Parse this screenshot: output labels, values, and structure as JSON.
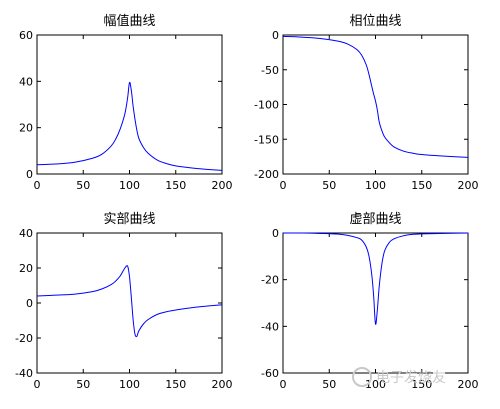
{
  "chart_data": [
    {
      "type": "line",
      "title": "幅值曲线",
      "xlabel": "",
      "ylabel": "",
      "xlim": [
        0,
        200
      ],
      "ylim": [
        0,
        60
      ],
      "xticks": [
        0,
        50,
        100,
        150,
        200
      ],
      "yticks": [
        0,
        20,
        40,
        60
      ],
      "grid": false,
      "line_color": "#0000ff",
      "series": [
        {
          "x": [
            0,
            20,
            40,
            60,
            70,
            80,
            85,
            90,
            95,
            98,
            100,
            102,
            104,
            107,
            110,
            115,
            120,
            130,
            140,
            150,
            170,
            200
          ],
          "values": [
            4,
            4.3,
            5,
            6.8,
            8.5,
            12,
            15,
            19.5,
            26,
            33,
            39.5,
            36,
            29,
            21,
            15.5,
            11.5,
            9,
            6,
            4.5,
            3.5,
            2.5,
            1.5
          ]
        }
      ]
    },
    {
      "type": "line",
      "title": "相位曲线",
      "xlabel": "",
      "ylabel": "",
      "xlim": [
        0,
        200
      ],
      "ylim": [
        -200,
        0
      ],
      "xticks": [
        0,
        50,
        100,
        150,
        200
      ],
      "yticks": [
        0,
        -50,
        -100,
        -150,
        -200
      ],
      "grid": false,
      "line_color": "#0000ff",
      "series": [
        {
          "x": [
            0,
            20,
            40,
            60,
            70,
            80,
            85,
            90,
            93,
            96,
            98,
            100,
            102,
            104,
            107,
            110,
            115,
            120,
            130,
            140,
            150,
            170,
            200
          ],
          "values": [
            -2,
            -3,
            -5,
            -9,
            -13,
            -21,
            -29,
            -43,
            -57,
            -74,
            -85,
            -95,
            -108,
            -125,
            -138,
            -147,
            -155,
            -161,
            -167,
            -170,
            -172,
            -174,
            -176
          ]
        }
      ]
    },
    {
      "type": "line",
      "title": "实部曲线",
      "xlabel": "",
      "ylabel": "",
      "xlim": [
        0,
        200
      ],
      "ylim": [
        -40,
        40
      ],
      "xticks": [
        0,
        50,
        100,
        150,
        200
      ],
      "yticks": [
        40,
        20,
        0,
        -20,
        -40
      ],
      "grid": false,
      "line_color": "#0000ff",
      "series": [
        {
          "x": [
            0,
            20,
            40,
            60,
            70,
            80,
            85,
            90,
            95,
            98,
            100,
            102,
            104,
            106,
            108,
            110,
            115,
            120,
            130,
            140,
            150,
            170,
            200
          ],
          "values": [
            4,
            4.5,
            5,
            6.5,
            8,
            10.5,
            12.5,
            15.5,
            20,
            21,
            15,
            3,
            -10,
            -18,
            -19,
            -16,
            -12,
            -9.5,
            -6.5,
            -5,
            -4,
            -2.5,
            -1
          ]
        }
      ]
    },
    {
      "type": "line",
      "title": "虚部曲线",
      "xlabel": "",
      "ylabel": "",
      "xlim": [
        0,
        200
      ],
      "ylim": [
        -60,
        0
      ],
      "xticks": [
        0,
        50,
        100,
        150,
        200
      ],
      "yticks": [
        0,
        -20,
        -40,
        -60
      ],
      "grid": false,
      "line_color": "#0000ff",
      "series": [
        {
          "x": [
            0,
            20,
            40,
            60,
            70,
            80,
            85,
            90,
            93,
            96,
            98,
            100,
            102,
            104,
            107,
            110,
            115,
            120,
            130,
            140,
            150,
            170,
            200
          ],
          "values": [
            0,
            0,
            -0.2,
            -0.5,
            -1,
            -2,
            -3,
            -6,
            -10,
            -18,
            -27,
            -39,
            -33,
            -23,
            -13,
            -7.5,
            -4,
            -2.5,
            -1.2,
            -0.6,
            -0.4,
            -0.2,
            0
          ]
        }
      ]
    }
  ],
  "watermark": {
    "text": "电子发烧友"
  }
}
